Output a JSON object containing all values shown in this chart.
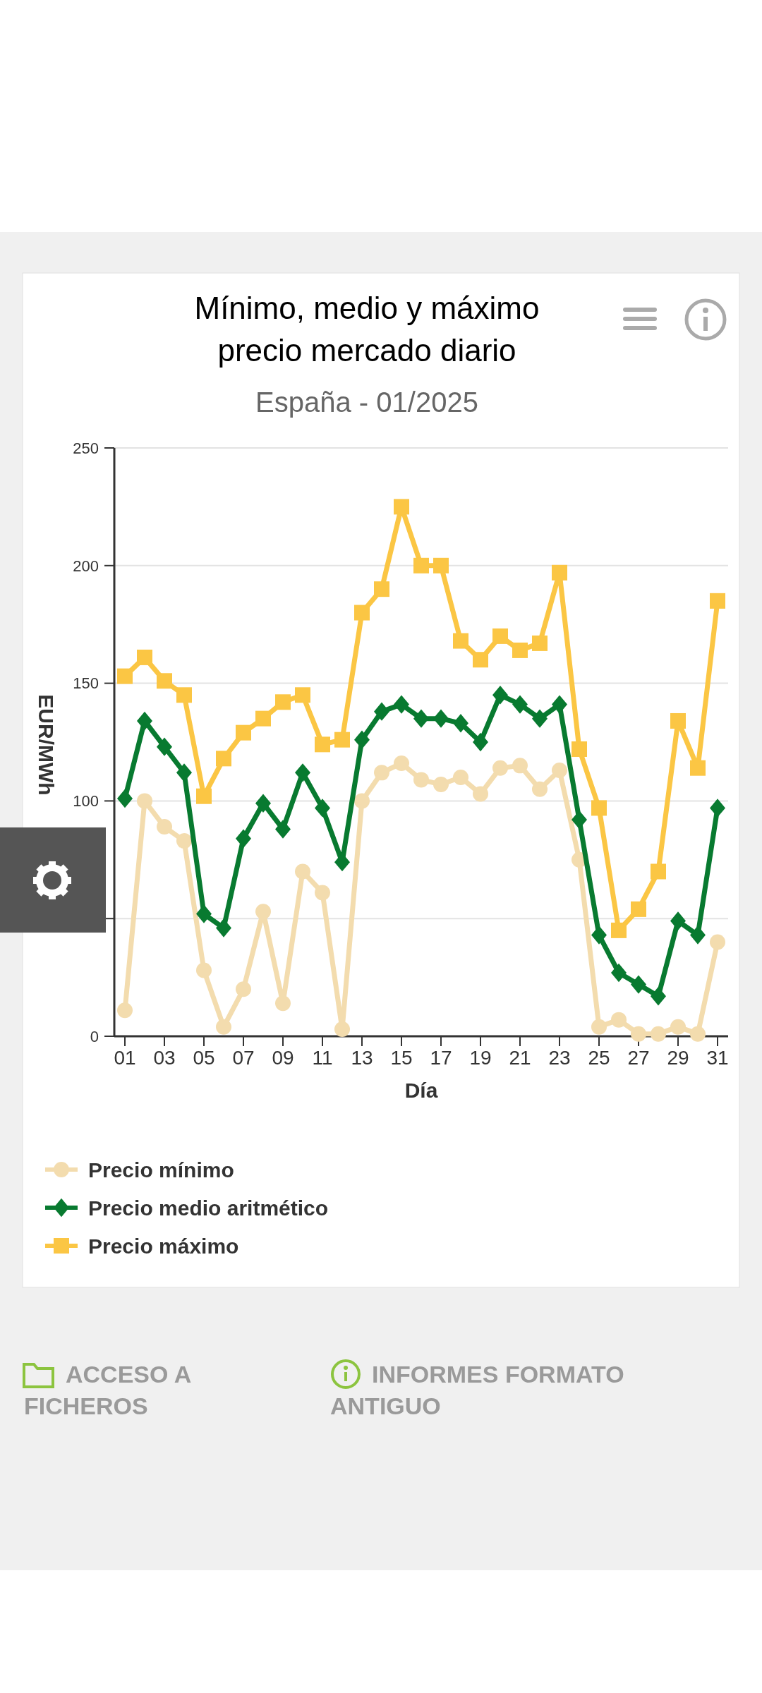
{
  "chart_data": {
    "type": "line",
    "title": "Mínimo, medio y máximo precio mercado diario",
    "subtitle": "España - 01/2025",
    "xlabel": "Día",
    "ylabel": "EUR/MWh",
    "categories": [
      "01",
      null,
      "03",
      null,
      "05",
      null,
      "07",
      null,
      "09",
      null,
      "11",
      null,
      "13",
      null,
      "15",
      null,
      "17",
      null,
      "19",
      null,
      "21",
      null,
      "23",
      null,
      "25",
      null,
      "27",
      null,
      "29",
      null,
      "31"
    ],
    "series": [
      {
        "name": "Precio mínimo",
        "color": "#f3dcae",
        "marker": "circle",
        "values": [
          11,
          100,
          89,
          83,
          28,
          4,
          20,
          53,
          14,
          70,
          61,
          3,
          100,
          112,
          116,
          109,
          107,
          110,
          103,
          114,
          115,
          105,
          113,
          75,
          4,
          7,
          1,
          1,
          4,
          1,
          40
        ]
      },
      {
        "name": "Precio medio aritmético",
        "color": "#087a30",
        "marker": "diamond",
        "values": [
          101,
          134,
          123,
          112,
          52,
          46,
          84,
          99,
          88,
          112,
          97,
          74,
          126,
          138,
          141,
          135,
          135,
          133,
          125,
          145,
          141,
          135,
          141,
          92,
          43,
          27,
          22,
          17,
          49,
          43,
          97
        ]
      },
      {
        "name": "Precio máximo",
        "color": "#fbc644",
        "marker": "square",
        "values": [
          153,
          161,
          151,
          145,
          102,
          118,
          129,
          135,
          142,
          145,
          124,
          126,
          180,
          190,
          225,
          200,
          200,
          168,
          160,
          170,
          164,
          167,
          197,
          122,
          97,
          45,
          54,
          70,
          134,
          114,
          185
        ]
      }
    ],
    "ylim": [
      0,
      250
    ],
    "yticks": [
      0,
      {
        "value": 50,
        "label": null
      },
      100,
      150,
      200,
      250
    ],
    "grid": "y",
    "legend": "bottom",
    "annotations": [
      "ACCESO A FICHEROS",
      "INFORMES FORMATO ANTIGUO"
    ]
  }
}
